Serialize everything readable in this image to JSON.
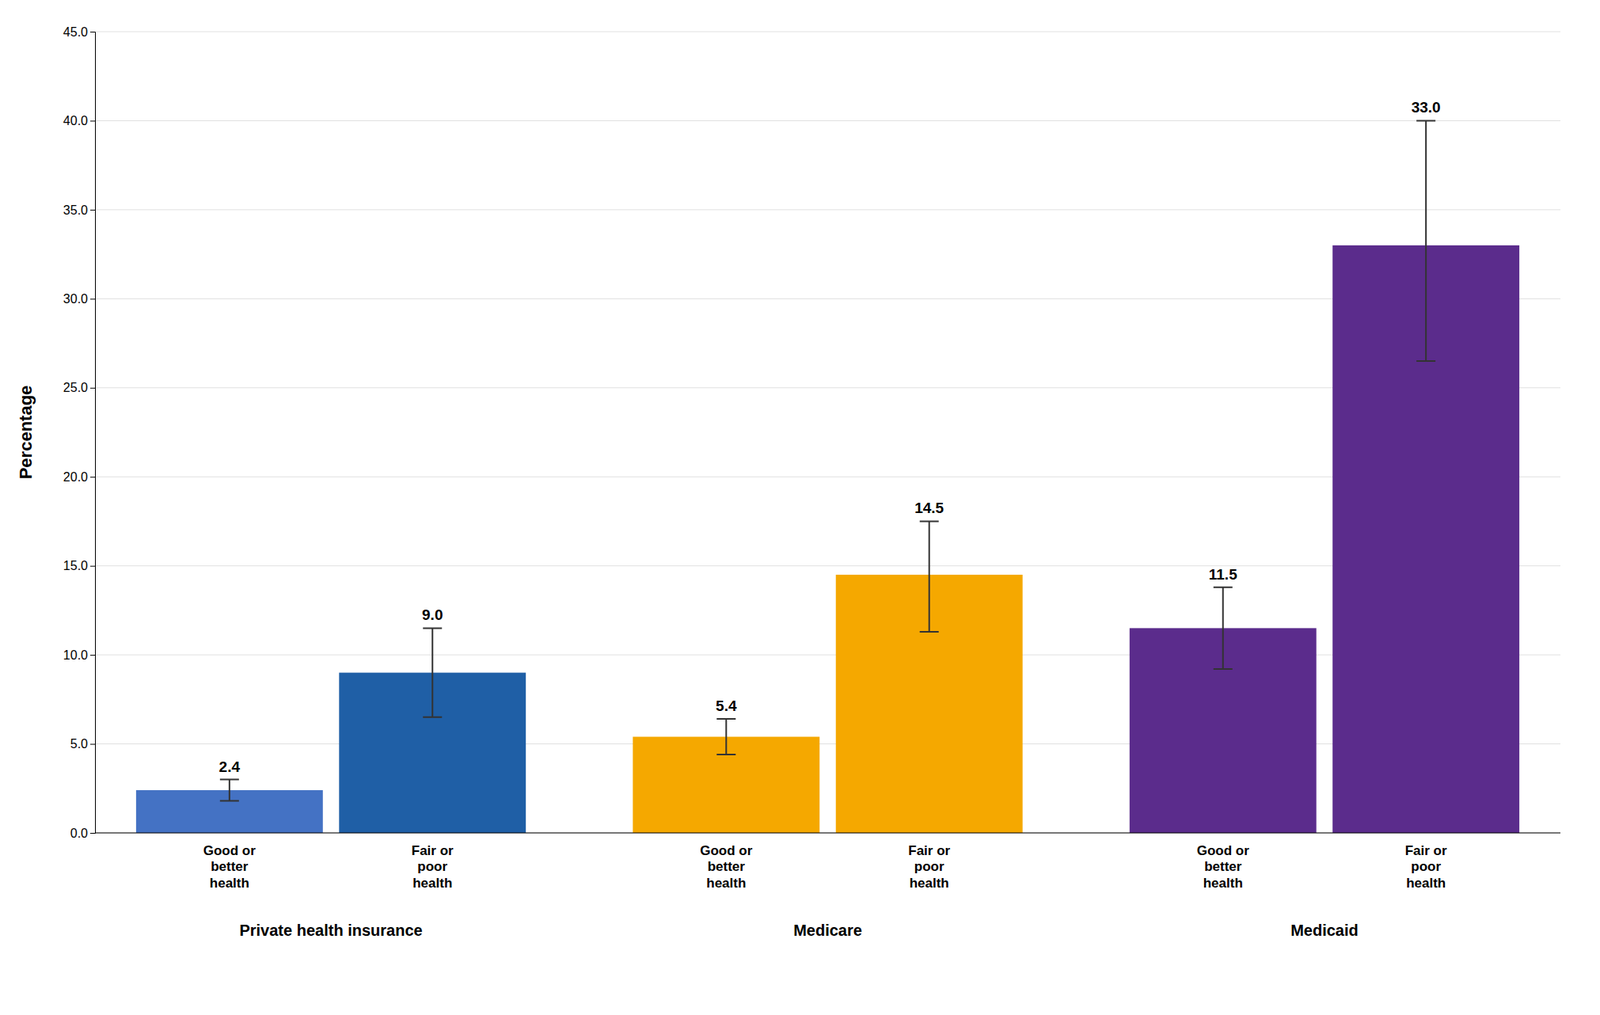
{
  "chart_data": {
    "type": "bar",
    "categories": [
      "Good or\nbetter\nhealth",
      "Fair or\npoor\nhealth",
      "Good or\nbetter\nhealth",
      "Fair or\npoor\nhealth",
      "Good or\nbetter\nhealth",
      "Fair or\npoor\nhealth"
    ],
    "groups": [
      "Private health insurance",
      "Medicare",
      "Medicaid"
    ],
    "values": [
      2.4,
      9.0,
      5.4,
      14.5,
      11.5,
      33.0
    ],
    "value_labels": [
      "2.4",
      "9.0",
      "5.4",
      "14.5",
      "11.5",
      "33.0"
    ],
    "errors_low": [
      0.6,
      2.5,
      1.0,
      3.2,
      2.3,
      6.5
    ],
    "errors_high": [
      0.6,
      2.5,
      1.0,
      3.0,
      2.3,
      7.0
    ],
    "colors": [
      "#4472c4",
      "#1f5fa6",
      "#f5a800",
      "#f5a800",
      "#5b2c8c",
      "#5b2c8c"
    ],
    "ylabel": "Percentage",
    "ylim": [
      0.0,
      45.0
    ],
    "yticks": [
      {
        "value": 0.0,
        "label": "0.0"
      },
      {
        "value": 5.0,
        "label": "5.0"
      },
      {
        "value": 10.0,
        "label": "10.0"
      },
      {
        "value": 15.0,
        "label": "15.0"
      },
      {
        "value": 20.0,
        "label": "20.0"
      },
      {
        "value": 25.0,
        "label": "25.0"
      },
      {
        "value": 30.0,
        "label": "30.0"
      },
      {
        "value": 35.0,
        "label": "35.0"
      },
      {
        "value": 40.0,
        "label": "40.0"
      },
      {
        "value": 45.0,
        "label": "45.0"
      }
    ],
    "grid": true,
    "data_labels": true
  }
}
